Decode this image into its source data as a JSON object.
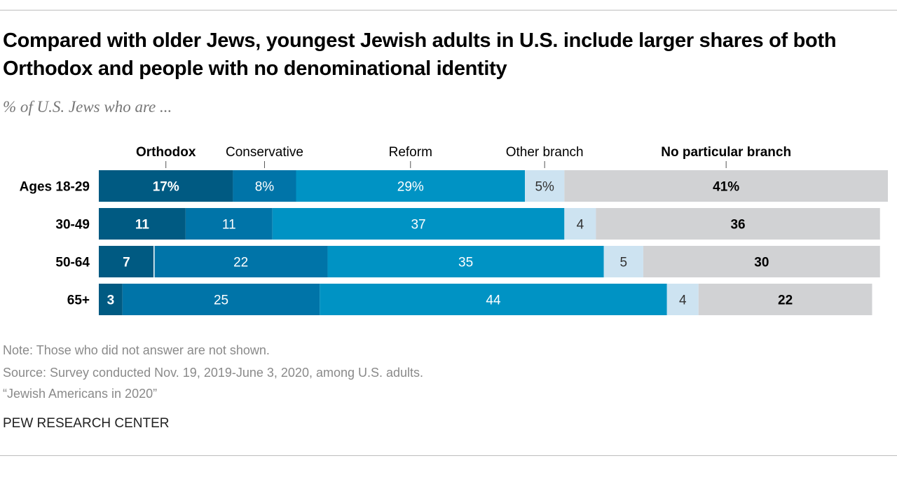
{
  "title": "Compared with older Jews, youngest Jewish adults in U.S. include larger shares of both Orthodox and people with no denominational identity",
  "subtitle": "% of U.S. Jews who are ...",
  "notes": {
    "note": "Note: Those who did not answer are not shown.",
    "source": "Source: Survey conducted Nov. 19, 2019-June 3, 2020, among U.S. adults.",
    "report": "“Jewish Americans in 2020”",
    "brand": "PEW RESEARCH CENTER"
  },
  "chart_data": {
    "type": "bar",
    "orientation": "horizontal",
    "stacked": true,
    "categories": [
      "Ages 18-29",
      "30-49",
      "50-64",
      "65+"
    ],
    "series": [
      {
        "name": "Orthodox",
        "values": [
          17,
          11,
          7,
          3
        ],
        "color": "#005a82",
        "label_color": "#ffffff",
        "bold": true
      },
      {
        "name": "Conservative",
        "values": [
          8,
          11,
          22,
          25
        ],
        "color": "#0074a8",
        "label_color": "#ffffff",
        "bold": false
      },
      {
        "name": "Reform",
        "values": [
          29,
          37,
          35,
          44
        ],
        "color": "#0093c4",
        "label_color": "#ffffff",
        "bold": false
      },
      {
        "name": "Other branch",
        "values": [
          5,
          4,
          5,
          4
        ],
        "color": "#cde3f1",
        "label_color": "#333333",
        "bold": false
      },
      {
        "name": "No particular branch",
        "values": [
          41,
          36,
          30,
          22
        ],
        "color": "#d1d2d4",
        "label_color": "#000000",
        "bold": true
      }
    ],
    "first_row_percent_sign": true,
    "xlim": [
      0,
      100
    ],
    "grid": false,
    "legend": "top, labels above segments"
  }
}
